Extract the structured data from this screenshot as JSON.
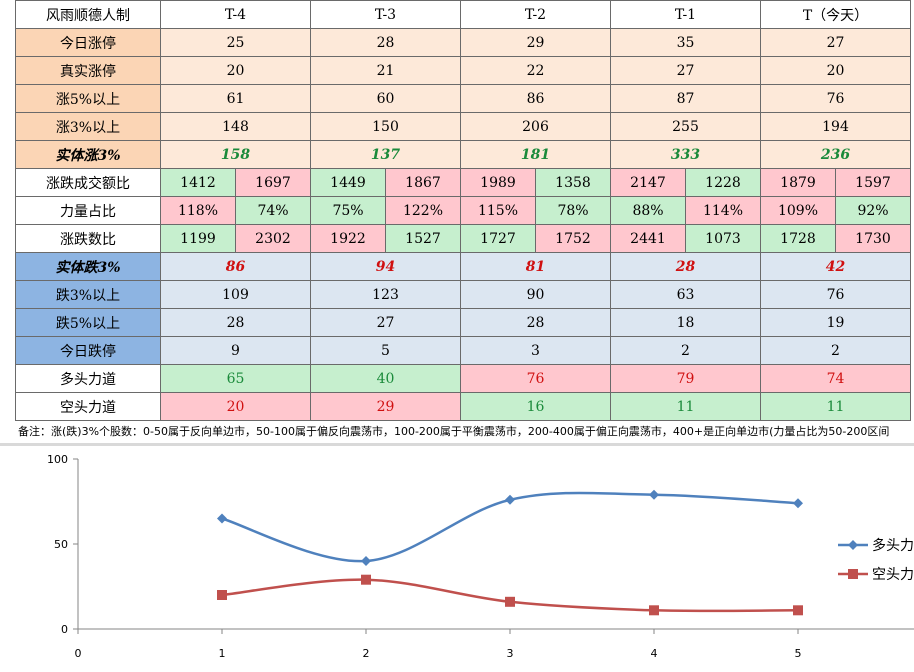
{
  "table": {
    "title": "风雨顺德人制",
    "columns": [
      "T-4",
      "T-3",
      "T-2",
      "T-1",
      "T（今天）"
    ],
    "up": [
      {
        "label": "今日涨停",
        "values": [
          "25",
          "28",
          "29",
          "35",
          "27"
        ]
      },
      {
        "label": "真实涨停",
        "values": [
          "20",
          "21",
          "22",
          "27",
          "20"
        ]
      },
      {
        "label": "涨5%以上",
        "values": [
          "61",
          "60",
          "86",
          "87",
          "76"
        ]
      },
      {
        "label": "涨3%以上",
        "values": [
          "148",
          "150",
          "206",
          "255",
          "194"
        ]
      }
    ],
    "solid_up": {
      "label": "实体涨3%",
      "values": [
        "158",
        "137",
        "181",
        "333",
        "236"
      ]
    },
    "pairs": [
      {
        "label": "涨跌成交额比",
        "cells": [
          [
            "1412",
            "1697"
          ],
          [
            "1449",
            "1867"
          ],
          [
            "1989",
            "1358"
          ],
          [
            "2147",
            "1228"
          ],
          [
            "1879",
            "1597"
          ]
        ],
        "colors": [
          [
            "gr",
            "pk"
          ],
          [
            "gr",
            "pk"
          ],
          [
            "pk",
            "gr"
          ],
          [
            "pk",
            "gr"
          ],
          [
            "pk",
            "pk"
          ]
        ]
      },
      {
        "label": "力量占比",
        "cells": [
          [
            "118%",
            "74%"
          ],
          [
            "75%",
            "122%"
          ],
          [
            "115%",
            "78%"
          ],
          [
            "88%",
            "114%"
          ],
          [
            "109%",
            "92%"
          ]
        ],
        "colors": [
          [
            "pk",
            "gr"
          ],
          [
            "gr",
            "pk"
          ],
          [
            "pk",
            "gr"
          ],
          [
            "gr",
            "pk"
          ],
          [
            "pk",
            "gr"
          ]
        ]
      },
      {
        "label": "涨跌数比",
        "cells": [
          [
            "1199",
            "2302"
          ],
          [
            "1922",
            "1527"
          ],
          [
            "1727",
            "1752"
          ],
          [
            "2441",
            "1073"
          ],
          [
            "1728",
            "1730"
          ]
        ],
        "colors": [
          [
            "gr",
            "pk"
          ],
          [
            "pk",
            "gr"
          ],
          [
            "gr",
            "pk"
          ],
          [
            "pk",
            "gr"
          ],
          [
            "gr",
            "pk"
          ]
        ]
      }
    ],
    "solid_down": {
      "label": "实体跌3%",
      "values": [
        "86",
        "94",
        "81",
        "28",
        "42"
      ]
    },
    "down": [
      {
        "label": "跌3%以上",
        "values": [
          "109",
          "123",
          "90",
          "63",
          "76"
        ]
      },
      {
        "label": "跌5%以上",
        "values": [
          "28",
          "27",
          "28",
          "18",
          "19"
        ]
      },
      {
        "label": "今日跌停",
        "values": [
          "9",
          "5",
          "3",
          "2",
          "2"
        ]
      }
    ],
    "bull": {
      "label": "多头力道",
      "values": [
        "65",
        "40",
        "76",
        "79",
        "74"
      ],
      "colors": [
        "gr",
        "gr",
        "pk",
        "pk",
        "pk"
      ]
    },
    "bear": {
      "label": "空头力道",
      "values": [
        "20",
        "29",
        "16",
        "11",
        "11"
      ],
      "colors": [
        "pk",
        "pk",
        "gr",
        "gr",
        "gr"
      ]
    }
  },
  "note": "备注：涨(跌)3%个股数：0-50属于反向单边市，50-100属于偏反向震荡市，100-200属于平衡震荡市，200-400属于偏正向震荡市，400+是正向单边市(力量占比为50-200区间",
  "colors": {
    "bull": "#4f81bd",
    "bear": "#c0504d",
    "green_text": "#1a8a3a",
    "red_text": "#d01010"
  },
  "chart_data": {
    "type": "line",
    "x": [
      1,
      2,
      3,
      4,
      5
    ],
    "xlim": [
      0,
      6
    ],
    "ylim": [
      0,
      100
    ],
    "x_ticks": [
      "0",
      "1",
      "2",
      "3",
      "4",
      "5"
    ],
    "y_ticks": [
      "0",
      "50",
      "100"
    ],
    "series": [
      {
        "name": "多头力",
        "values": [
          65,
          40,
          76,
          79,
          74
        ],
        "marker": "diamond"
      },
      {
        "name": "空头力",
        "values": [
          20,
          29,
          16,
          11,
          11
        ],
        "marker": "square"
      }
    ],
    "legend": "right",
    "grid": false,
    "smooth": true
  }
}
